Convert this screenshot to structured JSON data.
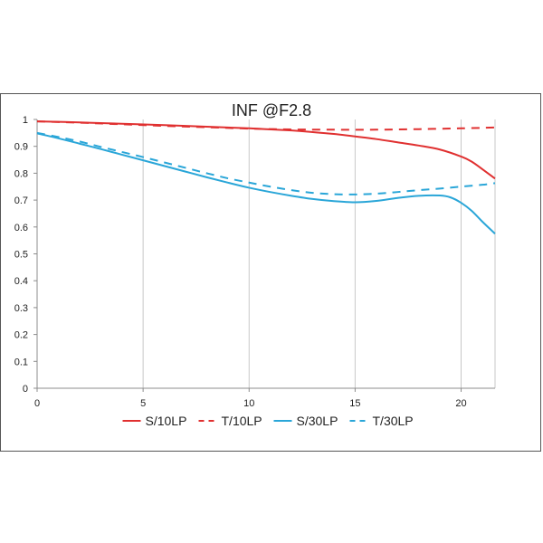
{
  "chart_data": {
    "type": "line",
    "title": "INF @F2.8",
    "xlabel": "",
    "ylabel": "",
    "xlim": [
      0,
      21.6
    ],
    "ylim": [
      0,
      1
    ],
    "xticks": [
      0,
      5,
      10,
      15,
      20
    ],
    "yticks": [
      0,
      0.1,
      0.2,
      0.3,
      0.4,
      0.5,
      0.6,
      0.7,
      0.8,
      0.9,
      1
    ],
    "grid": "vertical",
    "legend_position": "bottom",
    "series": [
      {
        "name": "S/10LP",
        "color": "#e03030",
        "dash": "solid",
        "x": [
          0,
          2,
          4,
          6,
          8,
          10,
          12,
          13,
          14,
          15,
          16,
          17,
          18,
          19,
          20,
          20.5,
          21,
          21.6
        ],
        "y": [
          0.993,
          0.989,
          0.984,
          0.979,
          0.973,
          0.967,
          0.959,
          0.953,
          0.946,
          0.937,
          0.927,
          0.915,
          0.903,
          0.888,
          0.862,
          0.843,
          0.815,
          0.78
        ]
      },
      {
        "name": "T/10LP",
        "color": "#e03030",
        "dash": "dashed",
        "x": [
          0,
          2,
          4,
          6,
          8,
          10,
          12,
          14,
          16,
          18,
          20,
          21.6
        ],
        "y": [
          0.993,
          0.988,
          0.982,
          0.976,
          0.971,
          0.966,
          0.963,
          0.962,
          0.962,
          0.964,
          0.967,
          0.97
        ]
      },
      {
        "name": "S/30LP",
        "color": "#2aa6d8",
        "dash": "solid",
        "x": [
          0,
          1,
          2,
          3,
          4,
          5,
          6,
          7,
          8,
          9,
          10,
          11,
          12,
          13,
          14,
          15,
          16,
          17,
          18,
          19,
          19.5,
          20,
          20.5,
          21,
          21.6
        ],
        "y": [
          0.948,
          0.93,
          0.91,
          0.89,
          0.869,
          0.848,
          0.827,
          0.806,
          0.785,
          0.765,
          0.746,
          0.73,
          0.716,
          0.704,
          0.696,
          0.692,
          0.697,
          0.708,
          0.716,
          0.717,
          0.71,
          0.69,
          0.66,
          0.62,
          0.575
        ]
      },
      {
        "name": "T/30LP",
        "color": "#2aa6d8",
        "dash": "dashed",
        "x": [
          0,
          1,
          2,
          3,
          4,
          5,
          6,
          7,
          8,
          9,
          10,
          11,
          12,
          13,
          14,
          15,
          16,
          17,
          18,
          19,
          20,
          21,
          21.6
        ],
        "y": [
          0.95,
          0.935,
          0.918,
          0.898,
          0.879,
          0.86,
          0.84,
          0.82,
          0.8,
          0.781,
          0.765,
          0.75,
          0.737,
          0.727,
          0.722,
          0.721,
          0.724,
          0.73,
          0.737,
          0.743,
          0.75,
          0.757,
          0.763
        ]
      }
    ]
  }
}
